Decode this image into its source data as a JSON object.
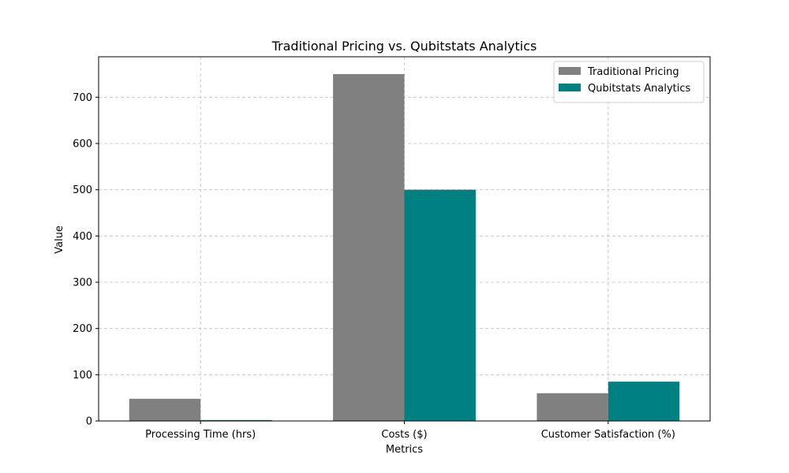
{
  "chart_data": {
    "type": "bar",
    "title": "Traditional Pricing vs. Qubitstats Analytics",
    "xlabel": "Metrics",
    "ylabel": "Value",
    "categories": [
      "Processing Time (hrs)",
      "Costs ($)",
      "Customer Satisfaction (%)"
    ],
    "series": [
      {
        "name": "Traditional Pricing",
        "values": [
          48,
          750,
          60
        ],
        "color": "#808080"
      },
      {
        "name": "Qubitstats Analytics",
        "values": [
          2,
          500,
          85
        ],
        "color": "#008080"
      }
    ],
    "ylim": [
      0,
      787.5
    ],
    "yticks": [
      0,
      100,
      200,
      300,
      400,
      500,
      600,
      700
    ],
    "grid": true,
    "legend_position": "top-right"
  }
}
